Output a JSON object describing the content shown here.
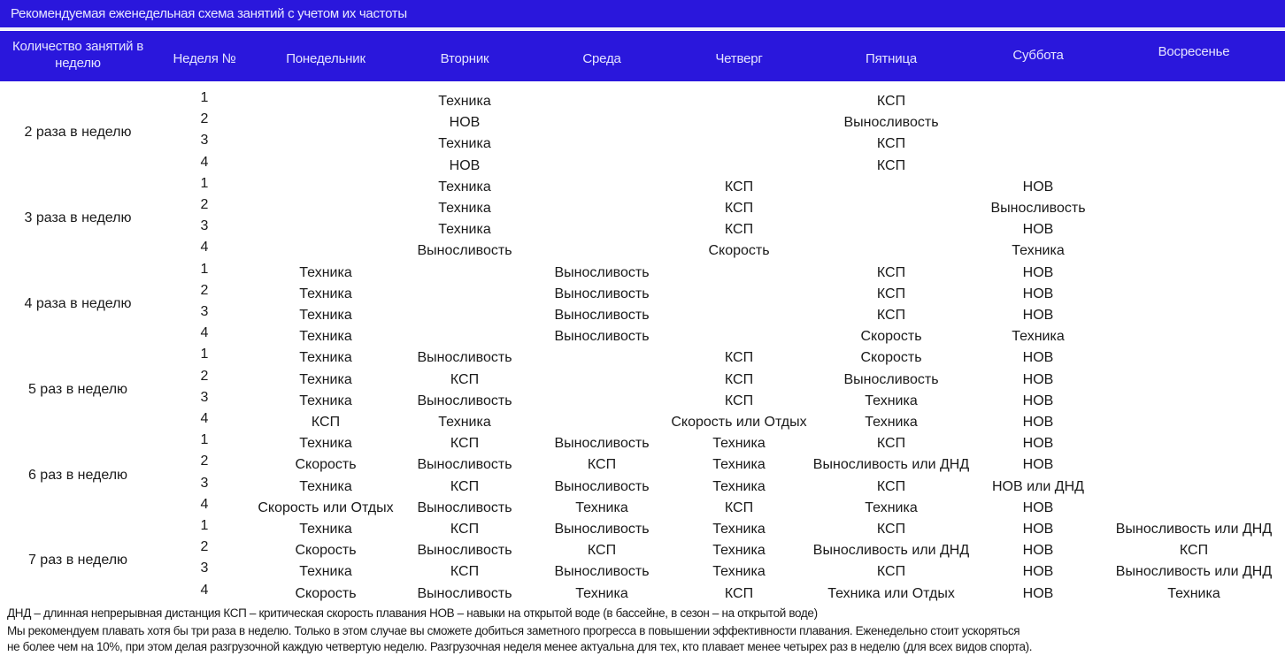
{
  "title": "Рекомендуемая еженедельная схема занятий с учетом их частоты",
  "headers": [
    "Количество занятий в неделю",
    "Неделя №",
    "Понедельник",
    "Вторник",
    "Среда",
    "Четверг",
    "Пятница",
    "Суббота",
    "Восресенье"
  ],
  "groups": [
    {
      "label": "2 раза в неделю",
      "weeks": [
        {
          "n": "1",
          "days": [
            "",
            "Техника",
            "",
            "",
            "КСП",
            "",
            ""
          ]
        },
        {
          "n": "2",
          "days": [
            "",
            "НОВ",
            "",
            "",
            "Выносливость",
            "",
            ""
          ]
        },
        {
          "n": "3",
          "days": [
            "",
            "Техника",
            "",
            "",
            "КСП",
            "",
            ""
          ]
        },
        {
          "n": "4",
          "days": [
            "",
            "НОВ",
            "",
            "",
            "КСП",
            "",
            ""
          ]
        }
      ]
    },
    {
      "label": "3 раза в неделю",
      "weeks": [
        {
          "n": "1",
          "days": [
            "",
            "Техника",
            "",
            "КСП",
            "",
            "НОВ",
            ""
          ]
        },
        {
          "n": "2",
          "days": [
            "",
            "Техника",
            "",
            "КСП",
            "",
            "Выносливость",
            ""
          ]
        },
        {
          "n": "3",
          "days": [
            "",
            "Техника",
            "",
            "КСП",
            "",
            "НОВ",
            ""
          ]
        },
        {
          "n": "4",
          "days": [
            "",
            "Выносливость",
            "",
            "Скорость",
            "",
            "Техника",
            ""
          ]
        }
      ]
    },
    {
      "label": "4 раза в неделю",
      "weeks": [
        {
          "n": "1",
          "days": [
            "Техника",
            "",
            "Выносливость",
            "",
            "КСП",
            "НОВ",
            ""
          ]
        },
        {
          "n": "2",
          "days": [
            "Техника",
            "",
            "Выносливость",
            "",
            "КСП",
            "НОВ",
            ""
          ]
        },
        {
          "n": "3",
          "days": [
            "Техника",
            "",
            "Выносливость",
            "",
            "КСП",
            "НОВ",
            ""
          ]
        },
        {
          "n": "4",
          "days": [
            "Техника",
            "",
            "Выносливость",
            "",
            "Скорость",
            "Техника",
            ""
          ]
        }
      ]
    },
    {
      "label": "5 раз в неделю",
      "weeks": [
        {
          "n": "1",
          "days": [
            "Техника",
            "Выносливость",
            "",
            "КСП",
            "Скорость",
            "НОВ",
            ""
          ]
        },
        {
          "n": "2",
          "days": [
            "Техника",
            "КСП",
            "",
            "КСП",
            "Выносливость",
            "НОВ",
            ""
          ]
        },
        {
          "n": "3",
          "days": [
            "Техника",
            "Выносливость",
            "",
            "КСП",
            "Техника",
            "НОВ",
            ""
          ]
        },
        {
          "n": "4",
          "days": [
            "КСП",
            "Техника",
            "",
            "Скорость или Отдых",
            "Техника",
            "НОВ",
            ""
          ]
        }
      ]
    },
    {
      "label": "6 раз в неделю",
      "weeks": [
        {
          "n": "1",
          "days": [
            "Техника",
            "КСП",
            "Выносливость",
            "Техника",
            "КСП",
            "НОВ",
            ""
          ]
        },
        {
          "n": "2",
          "days": [
            "Скорость",
            "Выносливость",
            "КСП",
            "Техника",
            "Выносливость или ДНД",
            "НОВ",
            ""
          ]
        },
        {
          "n": "3",
          "days": [
            "Техника",
            "КСП",
            "Выносливость",
            "Техника",
            "КСП",
            "НОВ или ДНД",
            ""
          ]
        },
        {
          "n": "4",
          "days": [
            "Скорость или Отдых",
            "Выносливость",
            "Техника",
            "КСП",
            "Техника",
            "НОВ",
            ""
          ]
        }
      ]
    },
    {
      "label": "7 раз в неделю",
      "weeks": [
        {
          "n": "1",
          "days": [
            "Техника",
            "КСП",
            "Выносливость",
            "Техника",
            "КСП",
            "НОВ",
            "Выносливость или ДНД"
          ]
        },
        {
          "n": "2",
          "days": [
            "Скорость",
            "Выносливость",
            "КСП",
            "Техника",
            "Выносливость или ДНД",
            "НОВ",
            "КСП"
          ]
        },
        {
          "n": "3",
          "days": [
            "Техника",
            "КСП",
            "Выносливость",
            "Техника",
            "КСП",
            "НОВ",
            "Выносливость или ДНД"
          ]
        },
        {
          "n": "4",
          "days": [
            "Скорость",
            "Выносливость",
            "Техника",
            "КСП",
            "Техника или Отдых",
            "НОВ",
            "Техника"
          ]
        }
      ]
    }
  ],
  "legend": "ДНД – длинная непрерывная дистанция   КСП – критическая скорость плавания   НОВ – навыки на открытой воде (в бассейне, в сезон – на открытой воде)",
  "note_line1": "Мы рекомендуем плавать хотя бы три раза в неделю. Только в этом случае вы сможете добиться заметного прогресса в повышении эффективности плавания. Еженедельно стоит ускоряться",
  "note_line2": " не более чем на 10%, при этом делая разгрузочной каждую четвертую неделю. Разгрузочная неделя менее актуальна для тех, кто плавает менее четырех раз в неделю (для всех видов спорта).",
  "colors": {
    "header_bg": "#2a17dc",
    "header_text": "#e4e4ff"
  }
}
